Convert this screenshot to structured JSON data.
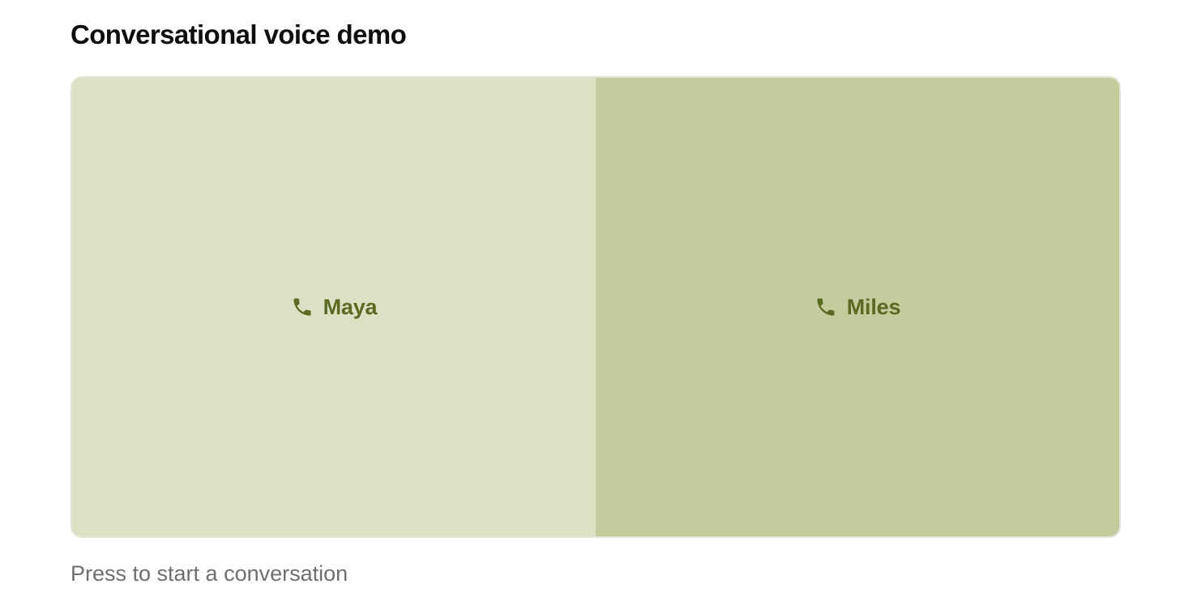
{
  "page": {
    "title": "Conversational voice demo",
    "hint": "Press to start a conversation"
  },
  "voices": [
    {
      "label": "Maya",
      "icon": "phone-icon",
      "background": "#dce1c4"
    },
    {
      "label": "Miles",
      "icon": "phone-icon",
      "background": "#c4cb9c"
    }
  ],
  "colors": {
    "accent_text": "#5a6a22",
    "hint_text": "#6f6f6f",
    "title_text": "#0e0e0e"
  }
}
